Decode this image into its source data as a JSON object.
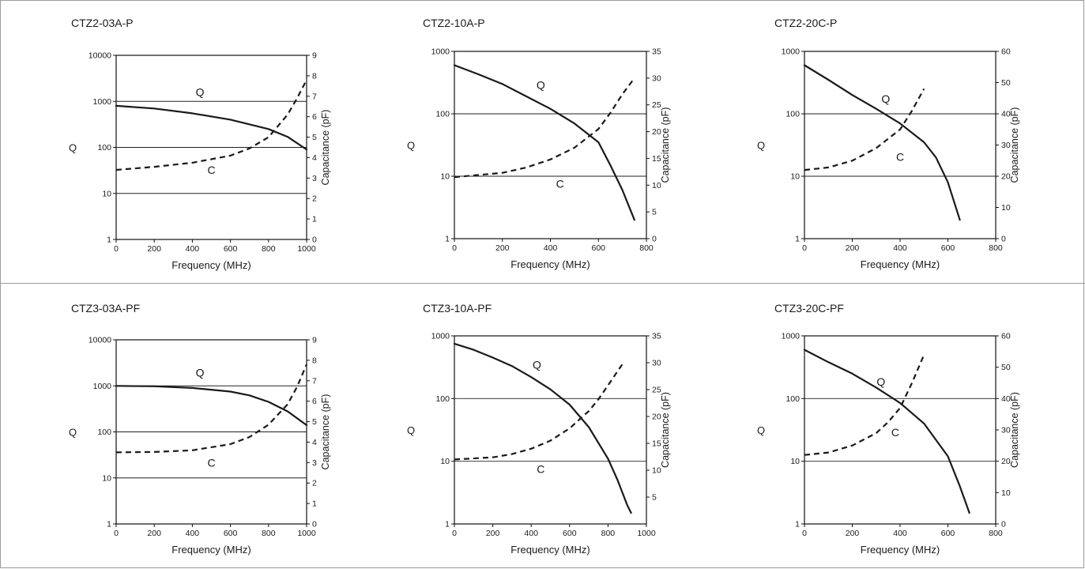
{
  "chart_data": [
    {
      "type": "line",
      "title": "CTZ2-03A-P",
      "xlabel": "Frequency (MHz)",
      "ylabel_left": "Q",
      "ylabel_right": "Capacitance (pF)",
      "xlim": [
        0,
        1000
      ],
      "xticks": [
        0,
        200,
        400,
        600,
        800,
        1000
      ],
      "ylim_left": [
        1,
        10000
      ],
      "yscale_left": "log",
      "yticks_left": [
        1,
        10,
        100,
        1000,
        10000
      ],
      "ylim_right": [
        0,
        9
      ],
      "yticks_right": [
        0,
        1,
        2,
        3,
        4,
        5,
        6,
        7,
        8,
        9
      ],
      "grid": "horizontal at Q decades",
      "series": [
        {
          "name": "Q",
          "axis": "left",
          "style": "solid",
          "x": [
            0,
            200,
            400,
            600,
            800,
            900,
            1000
          ],
          "y": [
            800,
            700,
            550,
            400,
            250,
            170,
            90
          ]
        },
        {
          "name": "C",
          "axis": "right",
          "style": "dashed",
          "x": [
            0,
            200,
            400,
            600,
            700,
            800,
            900,
            950,
            1000
          ],
          "y": [
            3.4,
            3.55,
            3.75,
            4.1,
            4.45,
            5.0,
            6.1,
            6.9,
            7.8
          ]
        }
      ],
      "annotations": [
        {
          "text": "Q",
          "x": 440,
          "y": 1300,
          "axis": "left"
        },
        {
          "text": "C",
          "x": 500,
          "y": 3.2,
          "axis": "right"
        }
      ]
    },
    {
      "type": "line",
      "title": "CTZ2-10A-P",
      "xlabel": "Frequency (MHz)",
      "ylabel_left": "Q",
      "ylabel_right": "Capacitance (pF)",
      "xlim": [
        0,
        800
      ],
      "xticks": [
        0,
        200,
        400,
        600,
        800
      ],
      "ylim_left": [
        1,
        1000
      ],
      "yscale_left": "log",
      "yticks_left": [
        1,
        10,
        100,
        1000
      ],
      "ylim_right": [
        0,
        35
      ],
      "yticks_right": [
        0,
        5,
        10,
        15,
        20,
        25,
        30,
        35
      ],
      "grid": "horizontal at Q decades",
      "series": [
        {
          "name": "Q",
          "axis": "left",
          "style": "solid",
          "x": [
            0,
            100,
            200,
            300,
            400,
            500,
            600,
            650,
            700,
            750
          ],
          "y": [
            600,
            430,
            300,
            190,
            120,
            70,
            35,
            15,
            6,
            2
          ]
        },
        {
          "name": "C",
          "axis": "right",
          "style": "dashed",
          "x": [
            0,
            200,
            300,
            400,
            500,
            600,
            650,
            700,
            750
          ],
          "y": [
            11.5,
            12.3,
            13.3,
            14.8,
            17,
            20.5,
            23.5,
            27,
            30
          ]
        }
      ],
      "annotations": [
        {
          "text": "Q",
          "x": 360,
          "y": 250,
          "axis": "left"
        },
        {
          "text": "C",
          "x": 440,
          "y": 9.5,
          "axis": "right"
        }
      ]
    },
    {
      "type": "line",
      "title": "CTZ2-20C-P",
      "xlabel": "Frequency (MHz)",
      "ylabel_left": "Q",
      "ylabel_right": "Capacitance (pF)",
      "xlim": [
        0,
        800
      ],
      "xticks": [
        0,
        200,
        400,
        600,
        800
      ],
      "ylim_left": [
        1,
        1000
      ],
      "yscale_left": "log",
      "yticks_left": [
        1,
        10,
        100,
        1000
      ],
      "ylim_right": [
        0,
        60
      ],
      "yticks_right": [
        0,
        10,
        20,
        30,
        40,
        50,
        60
      ],
      "grid": "horizontal at Q decades",
      "series": [
        {
          "name": "Q",
          "axis": "left",
          "style": "solid",
          "x": [
            0,
            100,
            200,
            300,
            400,
            500,
            550,
            600,
            650
          ],
          "y": [
            600,
            350,
            200,
            120,
            70,
            35,
            20,
            8,
            2
          ]
        },
        {
          "name": "C",
          "axis": "right",
          "style": "dashed",
          "x": [
            0,
            100,
            200,
            300,
            400,
            450,
            500
          ],
          "y": [
            22,
            22.8,
            25,
            29,
            35,
            41,
            48
          ]
        }
      ],
      "annotations": [
        {
          "text": "Q",
          "x": 340,
          "y": 150,
          "axis": "left"
        },
        {
          "text": "C",
          "x": 400,
          "y": 25,
          "axis": "right"
        }
      ]
    },
    {
      "type": "line",
      "title": "CTZ3-03A-PF",
      "xlabel": "Frequency (MHz)",
      "ylabel_left": "Q",
      "ylabel_right": "Capacitance (pF)",
      "xlim": [
        0,
        1000
      ],
      "xticks": [
        0,
        200,
        400,
        600,
        800,
        1000
      ],
      "ylim_left": [
        1,
        10000
      ],
      "yscale_left": "log",
      "yticks_left": [
        1,
        10,
        100,
        1000,
        10000
      ],
      "ylim_right": [
        0,
        9
      ],
      "yticks_right": [
        0,
        1,
        2,
        3,
        4,
        5,
        6,
        7,
        8,
        9
      ],
      "grid": "horizontal at Q decades",
      "series": [
        {
          "name": "Q",
          "axis": "left",
          "style": "solid",
          "x": [
            0,
            200,
            400,
            600,
            700,
            800,
            900,
            1000
          ],
          "y": [
            1000,
            980,
            900,
            750,
            620,
            450,
            280,
            140
          ]
        },
        {
          "name": "C",
          "axis": "right",
          "style": "dashed",
          "x": [
            0,
            200,
            400,
            600,
            700,
            800,
            900,
            950,
            1000
          ],
          "y": [
            3.5,
            3.52,
            3.6,
            3.9,
            4.25,
            4.85,
            5.85,
            6.7,
            7.8
          ]
        }
      ],
      "annotations": [
        {
          "text": "Q",
          "x": 440,
          "y": 1600,
          "axis": "left"
        },
        {
          "text": "C",
          "x": 500,
          "y": 2.8,
          "axis": "right"
        }
      ]
    },
    {
      "type": "line",
      "title": "CTZ3-10A-PF",
      "xlabel": "Frequency (MHz)",
      "ylabel_left": "Q",
      "ylabel_right": "Capacitance (pF)",
      "xlim": [
        0,
        1000
      ],
      "xticks": [
        0,
        200,
        400,
        600,
        800,
        1000
      ],
      "ylim_left": [
        1,
        1000
      ],
      "yscale_left": "log",
      "yticks_left": [
        1,
        10,
        100,
        1000
      ],
      "ylim_right": [
        0,
        35
      ],
      "yticks_right": [
        5,
        10,
        15,
        20,
        25,
        30,
        35
      ],
      "grid": "horizontal at Q decades",
      "series": [
        {
          "name": "Q",
          "axis": "left",
          "style": "solid",
          "x": [
            0,
            100,
            200,
            300,
            400,
            500,
            600,
            700,
            800,
            850,
            900,
            920
          ],
          "y": [
            750,
            600,
            450,
            330,
            220,
            140,
            80,
            35,
            11,
            5,
            2,
            1.5
          ]
        },
        {
          "name": "C",
          "axis": "right",
          "style": "dashed",
          "x": [
            0,
            200,
            300,
            400,
            500,
            600,
            700,
            750,
            800,
            880
          ],
          "y": [
            12,
            12.4,
            13,
            14,
            15.5,
            17.8,
            21,
            23.2,
            25.8,
            30
          ]
        }
      ],
      "annotations": [
        {
          "text": "Q",
          "x": 430,
          "y": 300,
          "axis": "left"
        },
        {
          "text": "C",
          "x": 450,
          "y": 9.5,
          "axis": "right"
        }
      ]
    },
    {
      "type": "line",
      "title": "CTZ3-20C-PF",
      "xlabel": "Frequency (MHz)",
      "ylabel_left": "Q",
      "ylabel_right": "Capacitance (pF)",
      "xlim": [
        0,
        800
      ],
      "xticks": [
        0,
        200,
        400,
        600,
        800
      ],
      "ylim_left": [
        1,
        1000
      ],
      "yscale_left": "log",
      "yticks_left": [
        1,
        10,
        100,
        1000
      ],
      "ylim_right": [
        0,
        60
      ],
      "yticks_right": [
        0,
        10,
        20,
        30,
        40,
        50,
        60
      ],
      "grid": "horizontal at Q decades",
      "series": [
        {
          "name": "Q",
          "axis": "left",
          "style": "solid",
          "x": [
            0,
            100,
            200,
            300,
            400,
            500,
            600,
            650,
            690
          ],
          "y": [
            600,
            380,
            250,
            150,
            85,
            40,
            12,
            4,
            1.5
          ]
        },
        {
          "name": "C",
          "axis": "right",
          "style": "dashed",
          "x": [
            0,
            100,
            200,
            300,
            350,
            400,
            450,
            500
          ],
          "y": [
            22,
            22.8,
            25,
            29,
            32.5,
            37,
            45,
            54
          ]
        }
      ],
      "annotations": [
        {
          "text": "Q",
          "x": 320,
          "y": 160,
          "axis": "left"
        },
        {
          "text": "C",
          "x": 380,
          "y": 28,
          "axis": "right"
        }
      ]
    }
  ]
}
